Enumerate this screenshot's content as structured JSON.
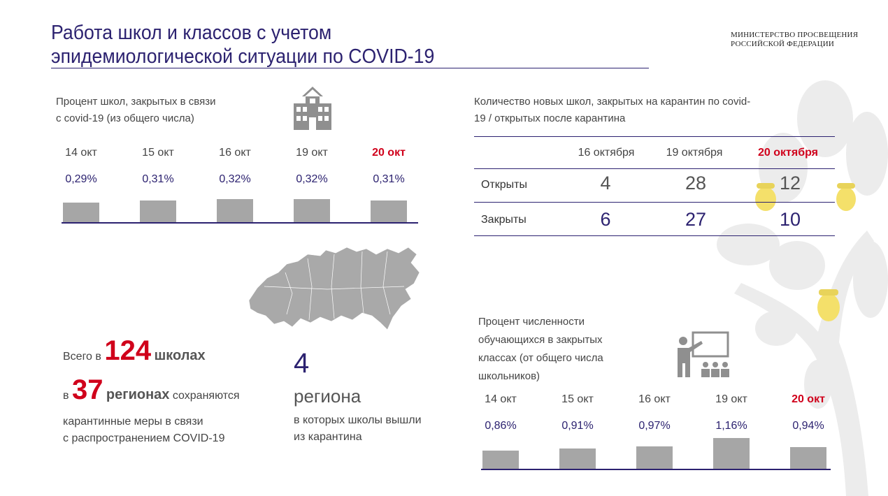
{
  "title": {
    "line1": "Работа школ и классов с учетом",
    "line2": "эпидемиологической ситуации по COVID-19"
  },
  "ministry": {
    "line1": "МИНИСТЕРСТВО ПРОСВЕЩЕНИЯ",
    "line2": "РОССИЙСКОЙ ФЕДЕРАЦИИ"
  },
  "schools_closed": {
    "label_line1": "Процент школ, закрытых в связи",
    "label_line2": "с covid-19 (из общего числа)",
    "icon": "school-building-icon",
    "chart_data": {
      "type": "bar",
      "categories": [
        "14 окт",
        "15 окт",
        "16 окт",
        "19 окт",
        "20 окт"
      ],
      "values": [
        0.29,
        0.31,
        0.32,
        0.32,
        0.31
      ],
      "value_labels": [
        "0,29%",
        "0,31%",
        "0,32%",
        "0,32%",
        "0,31%"
      ],
      "highlight": "20 окт",
      "highlight_color": "#d0001b",
      "bar_color": "#a6a6a6"
    }
  },
  "quarantine_table": {
    "label_line1": "Количество новых школ, закрытых на карантин по covid-",
    "label_line2": "19 / открытых после карантина",
    "columns": [
      "16 октября",
      "19 октября",
      "20 октября"
    ],
    "rows": [
      {
        "label": "Открыты",
        "values": [
          "4",
          "28",
          "12"
        ]
      },
      {
        "label": "Закрыты",
        "values": [
          "6",
          "27",
          "10"
        ]
      }
    ]
  },
  "summary": {
    "prefix1": "Всего в",
    "schools_count": "124",
    "suffix1": "школах",
    "prefix2": "в",
    "regions_count": "37",
    "regions_word": "регионах",
    "suffix2": "сохраняются",
    "line3": "карантинные меры в связи",
    "line4": "с распространением COVID-19"
  },
  "reopened": {
    "count": "4",
    "word": "региона",
    "line1": "в которых школы вышли",
    "line2": "из карантина"
  },
  "map": {
    "icon": "russia-map-icon"
  },
  "students": {
    "label_line1": "Процент численности",
    "label_line2": "обучающихся в закрытых",
    "label_line3": "классах (от общего числа",
    "label_line4": "школьников)",
    "icon": "classroom-teacher-icon",
    "chart_data": {
      "type": "bar",
      "categories": [
        "14 окт",
        "15 окт",
        "16 окт",
        "19 окт",
        "20 окт"
      ],
      "values": [
        0.86,
        0.91,
        0.97,
        1.16,
        0.94
      ],
      "value_labels": [
        "0,86%",
        "0,91%",
        "0,97%",
        "1,16%",
        "0,94%"
      ],
      "highlight": "20 окт",
      "highlight_color": "#d0001b",
      "bar_color": "#a6a6a6"
    }
  },
  "colors": {
    "navy": "#2c2270",
    "red": "#d0001b",
    "gray": "#a6a6a6",
    "acorn": "#f4e06a"
  }
}
